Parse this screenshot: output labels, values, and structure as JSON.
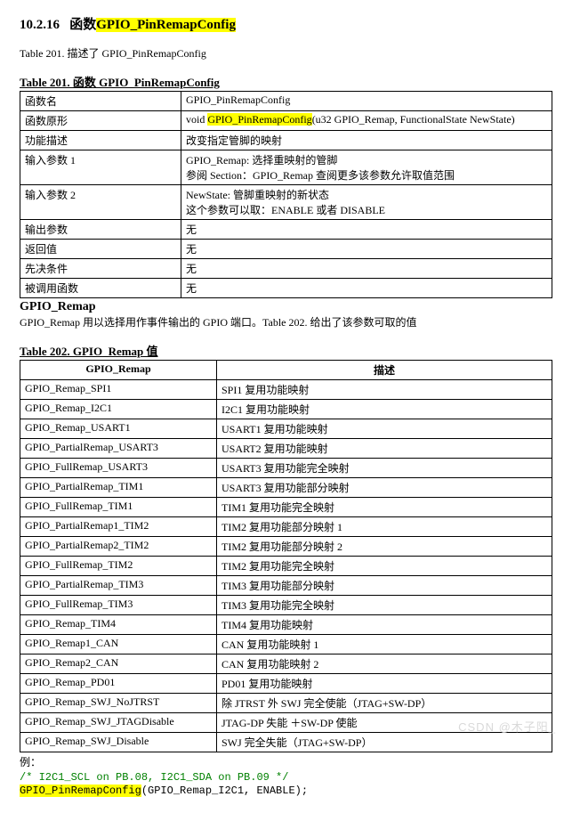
{
  "section": {
    "number": "10.2.16",
    "label": "函数",
    "highlighted": "GPIO_PinRemapConfig"
  },
  "intro": "Table 201.  描述了 GPIO_PinRemapConfig",
  "table201": {
    "caption": "Table 201.  函数 GPIO_PinRemapConfig",
    "rows": [
      {
        "k": "函数名",
        "v": "GPIO_PinRemapConfig"
      },
      {
        "k": "函数原形",
        "prefix": "void ",
        "hl": "GPIO_PinRemapConfig",
        "suffix": "(u32 GPIO_Remap, FunctionalState NewState)"
      },
      {
        "k": "功能描述",
        "v": "改变指定管脚的映射"
      },
      {
        "k": "输入参数 1",
        "line1": "GPIO_Remap:  选择重映射的管脚",
        "line2": "参阅 Section：GPIO_Remap 查阅更多该参数允许取值范围"
      },
      {
        "k": "输入参数 2",
        "line1": "NewState:  管脚重映射的新状态",
        "line2": "这个参数可以取：ENABLE 或者 DISABLE"
      },
      {
        "k": "输出参数",
        "v": "无"
      },
      {
        "k": "返回值",
        "v": "无"
      },
      {
        "k": "先决条件",
        "v": "无"
      },
      {
        "k": "被调用函数",
        "v": "无"
      }
    ]
  },
  "subhead": {
    "title": "GPIO_Remap",
    "desc": "GPIO_Remap 用以选择用作事件输出的 GPIO 端口。Table 202.  给出了该参数可取的值"
  },
  "table202": {
    "caption": "Table 202. GPIO_Remap 值",
    "header": {
      "c1": "GPIO_Remap",
      "c2": "描述"
    },
    "rows": [
      {
        "c1": "GPIO_Remap_SPI1",
        "c2": "SPI1 复用功能映射"
      },
      {
        "c1": "GPIO_Remap_I2C1",
        "c2": "I2C1 复用功能映射"
      },
      {
        "c1": "GPIO_Remap_USART1",
        "c2": "USART1 复用功能映射"
      },
      {
        "c1": "GPIO_PartialRemap_USART3",
        "c2": "USART2 复用功能映射"
      },
      {
        "c1": "GPIO_FullRemap_USART3",
        "c2": "USART3 复用功能完全映射"
      },
      {
        "c1": "GPIO_PartialRemap_TIM1",
        "c2": "USART3 复用功能部分映射"
      },
      {
        "c1": "GPIO_FullRemap_TIM1",
        "c2": "TIM1 复用功能完全映射"
      },
      {
        "c1": "GPIO_PartialRemap1_TIM2",
        "c2": "TIM2 复用功能部分映射 1"
      },
      {
        "c1": "GPIO_PartialRemap2_TIM2",
        "c2": "TIM2 复用功能部分映射 2"
      },
      {
        "c1": "GPIO_FullRemap_TIM2",
        "c2": "TIM2 复用功能完全映射"
      },
      {
        "c1": "GPIO_PartialRemap_TIM3",
        "c2": "TIM3 复用功能部分映射"
      },
      {
        "c1": "GPIO_FullRemap_TIM3",
        "c2": "TIM3 复用功能完全映射"
      },
      {
        "c1": "GPIO_Remap_TIM4",
        "c2": "TIM4 复用功能映射"
      },
      {
        "c1": "GPIO_Remap1_CAN",
        "c2": "CAN 复用功能映射 1"
      },
      {
        "c1": "GPIO_Remap2_CAN",
        "c2": "CAN 复用功能映射 2"
      },
      {
        "c1": "GPIO_Remap_PD01",
        "c2": "PD01 复用功能映射"
      },
      {
        "c1": "GPIO_Remap_SWJ_NoJTRST",
        "c2": "除 JTRST 外 SWJ 完全使能（JTAG+SW-DP）"
      },
      {
        "c1": "GPIO_Remap_SWJ_JTAGDisable",
        "c2": "JTAG-DP 失能 ＋SW-DP 使能"
      },
      {
        "c1": "GPIO_Remap_SWJ_Disable",
        "c2": "SWJ 完全失能（JTAG+SW-DP）"
      }
    ]
  },
  "example": {
    "label": "例：",
    "comment": "/* I2C1_SCL on PB.08, I2C1_SDA on PB.09 */",
    "call_hl": "GPIO_PinRemapConfig",
    "call_rest": "(GPIO_Remap_I2C1, ENABLE);"
  },
  "watermark": "CSDN @木子阳_"
}
